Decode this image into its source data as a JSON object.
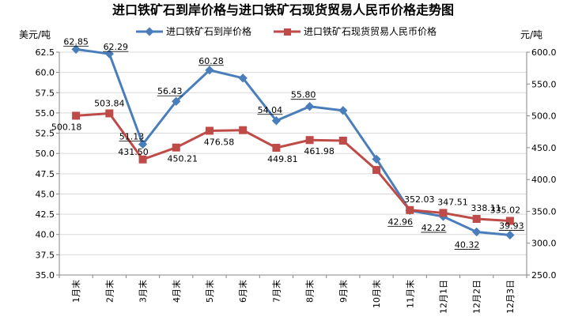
{
  "chart_data": {
    "type": "line",
    "title": "进口铁矿石到岸价格与进口铁矿石现货贸易人民币价格走势图",
    "y_left_label": "美元/吨",
    "y_right_label": "元/吨",
    "categories": [
      "1月末",
      "2月末",
      "3月末",
      "4月末",
      "5月末",
      "6月末",
      "7月末",
      "8月末",
      "9月末",
      "10月末",
      "11月末",
      "12月1日",
      "12月2日",
      "12月3日"
    ],
    "y_left_range": [
      35.0,
      62.5
    ],
    "y_left_ticks": [
      "35.0",
      "37.5",
      "40.0",
      "42.5",
      "45.0",
      "47.5",
      "50.0",
      "52.5",
      "55.0",
      "57.5",
      "60.0",
      "62.5"
    ],
    "y_right_range": [
      250.0,
      600.0
    ],
    "y_right_ticks": [
      "250.0",
      "300.0",
      "350.0",
      "400.0",
      "450.0",
      "500.0",
      "550.0",
      "600.0"
    ],
    "legend_position": "top",
    "series": [
      {
        "name": "进口铁矿石到岸价格",
        "axis": "left",
        "color": "#4A7EBB",
        "marker": "diamond",
        "values": [
          62.85,
          62.29,
          51.13,
          56.43,
          60.28,
          59.3,
          54.04,
          55.8,
          55.3,
          49.3,
          42.96,
          42.22,
          40.32,
          39.93
        ],
        "labels": [
          "62.85",
          "62.29",
          "51.13",
          "56.43",
          "60.28",
          "",
          "54.04",
          "55.80",
          "",
          "",
          "42.96",
          "42.22",
          "40.32",
          "39.93"
        ]
      },
      {
        "name": "进口铁矿石现货贸易人民币价格",
        "axis": "right",
        "color": "#BE4B48",
        "marker": "square",
        "values": [
          500.18,
          503.84,
          431.5,
          450.21,
          476.58,
          477.5,
          449.81,
          461.98,
          461.0,
          415.0,
          352.03,
          347.51,
          338.11,
          335.02
        ],
        "labels": [
          "500.18",
          "503.84",
          "431.50",
          "450.21",
          "476.58",
          "",
          "449.81",
          "461.98",
          "",
          "",
          "352.03",
          "347.51",
          "338.11",
          "335.02"
        ]
      }
    ]
  }
}
